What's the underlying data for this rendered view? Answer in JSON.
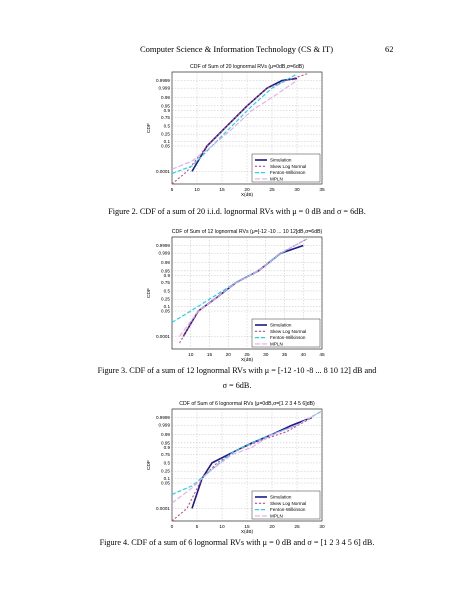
{
  "header": {
    "title": "Computer Science & Information Technology (CS & IT)",
    "page": "62"
  },
  "chart_data": [
    {
      "type": "line",
      "title": "CDF of Sum of 20 lognormal RVs (μ=0dB,σ=6dB)",
      "xlabel": "X(dB)",
      "ylabel": "CDF",
      "xticks": [
        "5",
        "10",
        "15",
        "20",
        "25",
        "30",
        "35"
      ],
      "yticks": [
        "0.9999",
        "0.999",
        "0.99",
        "0.95",
        "0.9",
        "0.75",
        "0.5",
        "0.25",
        "0.1",
        "0.05",
        "0.0001"
      ],
      "xlim": [
        5,
        35
      ],
      "grid": true,
      "legend_position": "bottom-right",
      "series": [
        {
          "name": "Simulation",
          "x": [
            9,
            12,
            16,
            20,
            24,
            27,
            30
          ],
          "y": [
            0.0001,
            0.05,
            0.5,
            0.95,
            0.999,
            0.9999,
            0.99995
          ]
        },
        {
          "name": "Skew Log Normal",
          "x": [
            5,
            8,
            12,
            16,
            20,
            24,
            28,
            32
          ],
          "y": [
            1e-06,
            0.0001,
            0.05,
            0.5,
            0.95,
            0.999,
            0.9999,
            0.99999
          ]
        },
        {
          "name": "Fenton-Wilkinson",
          "x": [
            5,
            9,
            13,
            17,
            21,
            25,
            30
          ],
          "y": [
            5e-05,
            0.0005,
            0.05,
            0.5,
            0.95,
            0.999,
            0.99999
          ]
        },
        {
          "name": "MPLN",
          "x": [
            5,
            9,
            13,
            17,
            21,
            25,
            30
          ],
          "y": [
            0.0002,
            0.002,
            0.05,
            0.4,
            0.9,
            0.99,
            0.9999
          ]
        }
      ]
    },
    {
      "type": "line",
      "title": "CDF of Sum of 12 lognormal RVs (μ=[-12 -10 ... 10 12]dB,σ=6dB)",
      "xlabel": "X(dB)",
      "ylabel": "CDF",
      "xticks": [
        "10",
        "15",
        "20",
        "25",
        "30",
        "35",
        "40",
        "45"
      ],
      "yticks": [
        "0.9999",
        "0.999",
        "0.99",
        "0.95",
        "0.9",
        "0.75",
        "0.5",
        "0.25",
        "0.1",
        "0.05",
        "0.0001"
      ],
      "xlim": [
        5,
        45
      ],
      "grid": true,
      "legend_position": "bottom-right",
      "series": [
        {
          "name": "Simulation",
          "x": [
            8,
            12,
            17,
            22,
            28,
            34,
            40
          ],
          "y": [
            0.0001,
            0.05,
            0.3,
            0.75,
            0.95,
            0.999,
            0.9999
          ]
        },
        {
          "name": "Skew Log Normal",
          "x": [
            7,
            12,
            17,
            22,
            28,
            34,
            41
          ],
          "y": [
            1e-05,
            0.05,
            0.3,
            0.75,
            0.95,
            0.999,
            0.99999
          ]
        },
        {
          "name": "Fenton-Wilkinson",
          "x": [
            5,
            10,
            15,
            22,
            28,
            34,
            41
          ],
          "y": [
            0.005,
            0.05,
            0.25,
            0.75,
            0.95,
            0.999,
            0.99999
          ]
        },
        {
          "name": "MPLN",
          "x": [
            7,
            12,
            17,
            22,
            28,
            34,
            41
          ],
          "y": [
            0.0001,
            0.05,
            0.3,
            0.75,
            0.95,
            0.999,
            0.99999
          ]
        }
      ]
    },
    {
      "type": "line",
      "title": "CDF of Sum of 6 lognormal RVs (μ=0dB,σ=[1 2 3 4 5 6]dB)",
      "xlabel": "X(dB)",
      "ylabel": "CDF",
      "xticks": [
        "0",
        "5",
        "10",
        "15",
        "20",
        "25",
        "30"
      ],
      "yticks": [
        "0.9999",
        "0.999",
        "0.99",
        "0.95",
        "0.9",
        "0.75",
        "0.5",
        "0.25",
        "0.1",
        "0.05",
        "0.0001"
      ],
      "xlim": [
        0,
        30
      ],
      "grid": true,
      "legend_position": "bottom-right",
      "series": [
        {
          "name": "Simulation",
          "x": [
            4,
            6,
            8,
            12,
            16,
            20,
            24,
            28
          ],
          "y": [
            0.0001,
            0.1,
            0.5,
            0.8,
            0.95,
            0.99,
            0.999,
            0.9999
          ]
        },
        {
          "name": "Skew Log Normal",
          "x": [
            0,
            3,
            6,
            9,
            13,
            18,
            23,
            28
          ],
          "y": [
            1e-06,
            0.0001,
            0.1,
            0.5,
            0.85,
            0.97,
            0.995,
            0.9999
          ]
        },
        {
          "name": "Fenton-Wilkinson",
          "x": [
            0,
            4,
            8,
            12,
            16,
            20,
            25,
            30
          ],
          "y": [
            0.005,
            0.03,
            0.3,
            0.8,
            0.95,
            0.99,
            0.999,
            0.99999
          ]
        },
        {
          "name": "MPLN",
          "x": [
            0,
            4,
            8,
            12,
            16,
            20,
            25,
            30
          ],
          "y": [
            0.0005,
            0.02,
            0.3,
            0.75,
            0.9,
            0.99,
            0.999,
            0.99999
          ]
        }
      ]
    }
  ],
  "captions": [
    {
      "text": "Figure 2. CDF of a sum of 20 i.i.d. lognormal RVs with μ = 0 dB and σ = 6dB."
    },
    {
      "line1": "Figure 3. CDF of a sum of 12 lognormal RVs with μ = [-12 -10 -8  ...  8 10 12] dB and",
      "line2": "σ = 6dB."
    },
    {
      "text": "Figure 4. CDF of a sum of 6 lognormal RVs with μ = 0 dB and σ = [1 2 3 4 5 6] dB."
    }
  ],
  "colors": {
    "Simulation": "#1a1a8c",
    "Skew Log Normal": "#d0408a",
    "Fenton-Wilkinson": "#22d4e6",
    "MPLN": "#e9a8e6"
  }
}
